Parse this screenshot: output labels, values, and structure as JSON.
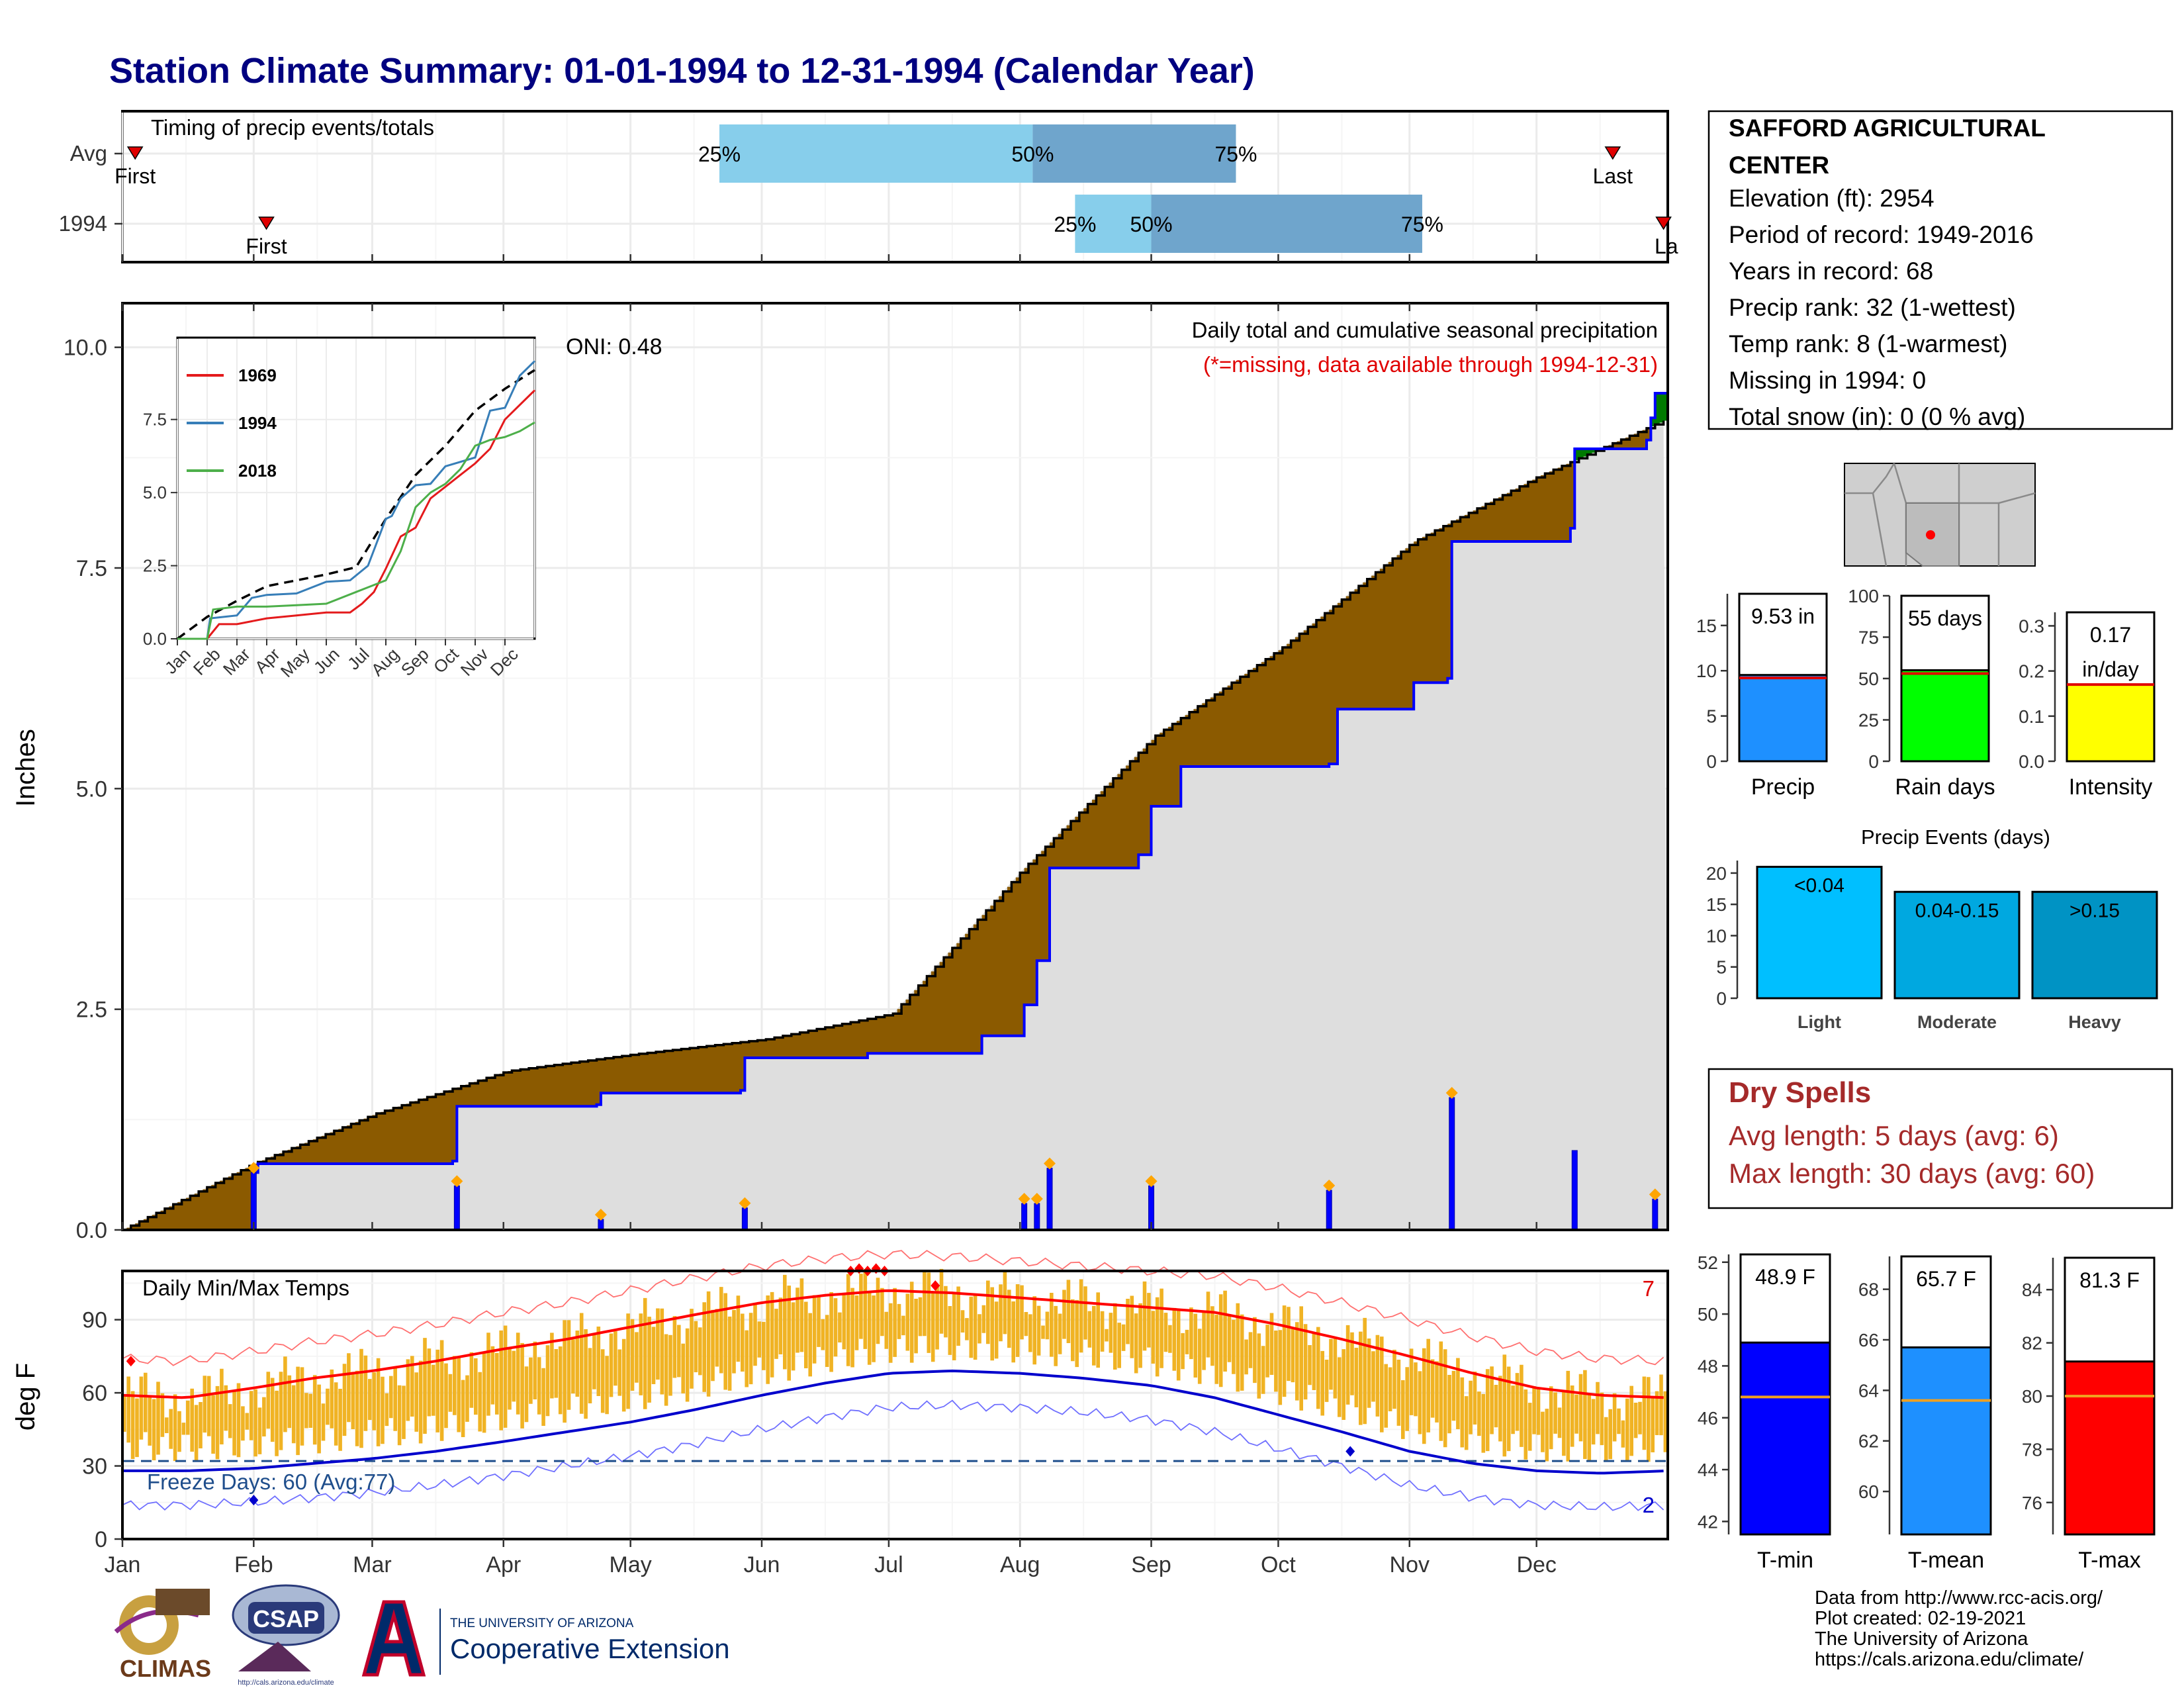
{
  "title": "Station Climate Summary: 01-01-1994 to 12-31-1994 (Calendar Year)",
  "colors": {
    "title": "#000080",
    "precip_obs": "#0000ff",
    "precip_avg_fill": "#dedede",
    "deficit": "#8b5a00",
    "surplus": "#007a00",
    "band_light": "#87ceeb",
    "band_dark": "#6fa5cc",
    "temp_band": "#f0b324",
    "tmax_avg": "#ff0000",
    "tmin_avg": "#0000cc",
    "dry_spells": "#a52a2a",
    "freeze": "#1f4e8c",
    "tmin_bar": "#0000ff",
    "tmean_bar": "#1e90ff",
    "tmax_bar": "#ff0000",
    "precip_bar": "#1e90ff",
    "raindays_bar": "#00ff00",
    "intensity_bar": "#ffff00",
    "events_light": "#00bfff",
    "events_moderate": "#00a8e0",
    "events_heavy": "#0093c4"
  },
  "chart_data": [
    {
      "type": "bar",
      "name": "timing",
      "title": "Timing of precip events/totals",
      "rows": [
        {
          "label": "Avg",
          "first": "Jan 4",
          "q25": "May 22",
          "q50": "Aug 4",
          "q75": "Sep 21",
          "last": "Dec 19",
          "first_label": "First",
          "last_label": "Last"
        },
        {
          "label": "1994",
          "first": "Feb 4",
          "q25": "Aug 14",
          "q50": "Sep 1",
          "q75": "Nov 4",
          "last": "Dec 31",
          "first_label": "First",
          "last_label": "La"
        }
      ],
      "percent_labels": [
        "25%",
        "50%",
        "75%"
      ]
    },
    {
      "type": "area",
      "name": "cumulative-precip",
      "ylabel": "Inches",
      "ylim": [
        0,
        10.5
      ],
      "yticks": [
        "0.0",
        "2.5",
        "5.0",
        "7.5",
        "10.0"
      ],
      "xticks": [
        "Jan",
        "Feb",
        "Mar",
        "Apr",
        "May",
        "Jun",
        "Jul",
        "Aug",
        "Sep",
        "Oct",
        "Nov",
        "Dec"
      ],
      "subtitle": "Daily total and cumulative seasonal precipitation",
      "missing_note": "(*=missing, data available through 1994-12-31)",
      "oni": "ONI: 0.48",
      "avg_cumulative": {
        "day": [
          0,
          31,
          60,
          91,
          121,
          152,
          182,
          213,
          244,
          274,
          305,
          335,
          365
        ],
        "in": [
          0,
          0.75,
          1.32,
          1.8,
          1.99,
          2.16,
          2.45,
          4.1,
          5.6,
          6.6,
          7.8,
          8.55,
          9.19
        ]
      },
      "obs_cumulative": [
        {
          "day": 30,
          "in": 0
        },
        {
          "day": 31,
          "in": 0.65
        },
        {
          "day": 32,
          "in": 0.75
        },
        {
          "day": 78,
          "in": 0.78
        },
        {
          "day": 79,
          "in": 1.4
        },
        {
          "day": 112,
          "in": 1.42
        },
        {
          "day": 113,
          "in": 1.55
        },
        {
          "day": 146,
          "in": 1.58
        },
        {
          "day": 147,
          "in": 1.95
        },
        {
          "day": 176,
          "in": 2.0
        },
        {
          "day": 203,
          "in": 2.2
        },
        {
          "day": 213,
          "in": 2.55
        },
        {
          "day": 216,
          "in": 3.05
        },
        {
          "day": 219,
          "in": 4.1
        },
        {
          "day": 240,
          "in": 4.25
        },
        {
          "day": 243,
          "in": 4.8
        },
        {
          "day": 250,
          "in": 5.25
        },
        {
          "day": 285,
          "in": 5.28
        },
        {
          "day": 287,
          "in": 5.9
        },
        {
          "day": 305,
          "in": 6.2
        },
        {
          "day": 313,
          "in": 6.25
        },
        {
          "day": 314,
          "in": 7.8
        },
        {
          "day": 342,
          "in": 7.95
        },
        {
          "day": 343,
          "in": 8.85
        },
        {
          "day": 360,
          "in": 8.95
        },
        {
          "day": 361,
          "in": 9.2
        },
        {
          "day": 362,
          "in": 9.48
        },
        {
          "day": 365,
          "in": 9.53
        }
      ],
      "daily_totals": [
        {
          "day": 31,
          "in": 0.65
        },
        {
          "day": 79,
          "in": 0.5
        },
        {
          "day": 113,
          "in": 0.12
        },
        {
          "day": 147,
          "in": 0.25
        },
        {
          "day": 213,
          "in": 0.3
        },
        {
          "day": 216,
          "in": 0.3
        },
        {
          "day": 219,
          "in": 0.7
        },
        {
          "day": 243,
          "in": 0.5
        },
        {
          "day": 285,
          "in": 0.45
        },
        {
          "day": 314,
          "in": 1.5
        },
        {
          "day": 343,
          "in": 0.9
        },
        {
          "day": 362,
          "in": 0.35
        }
      ]
    },
    {
      "type": "line",
      "name": "inset-cumulative-years",
      "series": [
        {
          "name": "1969",
          "color": "#e41a1c",
          "x": [
            0,
            1,
            1.4,
            2,
            2.5,
            3,
            4,
            5,
            5.8,
            6.2,
            6.6,
            7,
            7.5,
            8,
            8.5,
            9,
            9.5,
            10,
            10.5,
            11,
            11.5,
            12
          ],
          "y": [
            0,
            0,
            0.5,
            0.5,
            0.6,
            0.7,
            0.8,
            0.9,
            0.9,
            1.2,
            1.6,
            2.4,
            3.5,
            3.8,
            4.8,
            5.2,
            5.6,
            6.0,
            6.5,
            7.5,
            8.0,
            8.5
          ]
        },
        {
          "name": "1994",
          "color": "#377eb8",
          "x": [
            0,
            1,
            1.1,
            2,
            2.5,
            3,
            4,
            5,
            5.8,
            6.4,
            7,
            7.2,
            7.5,
            8,
            8.5,
            9,
            10,
            10.5,
            11,
            11.5,
            12
          ],
          "y": [
            0,
            0,
            0.7,
            0.8,
            1.4,
            1.5,
            1.55,
            1.95,
            2.0,
            2.5,
            4.1,
            4.2,
            4.8,
            5.25,
            5.3,
            5.9,
            6.2,
            7.8,
            7.9,
            9.0,
            9.5
          ]
        },
        {
          "name": "2018",
          "color": "#4daf4a",
          "x": [
            0,
            1,
            1.2,
            2,
            3,
            4,
            5,
            6,
            6.5,
            7,
            7.5,
            8,
            8.5,
            9,
            9.5,
            10,
            10.5,
            11,
            11.5,
            12
          ],
          "y": [
            0,
            0,
            1.0,
            1.1,
            1.1,
            1.15,
            1.2,
            1.6,
            1.8,
            2.0,
            3.0,
            4.5,
            5.0,
            5.3,
            5.8,
            6.6,
            6.8,
            6.9,
            7.1,
            7.4
          ]
        }
      ],
      "avg": {
        "x": [
          0,
          1,
          2,
          3,
          4,
          5,
          6,
          7,
          8,
          9,
          10,
          11,
          12
        ],
        "y": [
          0,
          0.75,
          1.3,
          1.8,
          2.0,
          2.2,
          2.45,
          4.1,
          5.6,
          6.6,
          7.8,
          8.55,
          9.19
        ]
      },
      "yticks": [
        "0.0",
        "2.5",
        "5.0",
        "7.5"
      ],
      "xticks": [
        "Jan",
        "Feb",
        "Mar",
        "Apr",
        "May",
        "Jun",
        "Jul",
        "Aug",
        "Sep",
        "Oct",
        "Nov",
        "Dec"
      ]
    },
    {
      "type": "line",
      "name": "daily-temps",
      "title": "Daily Min/Max Temps",
      "ylabel": "deg F",
      "ylim": [
        0,
        110
      ],
      "yticks": [
        "0",
        "30",
        "60",
        "90"
      ],
      "xticks": [
        "Jan",
        "Feb",
        "Mar",
        "Apr",
        "May",
        "Jun",
        "Jul",
        "Aug",
        "Sep",
        "Oct",
        "Nov",
        "Dec"
      ],
      "record_high_count": "7",
      "record_low_count": "2",
      "freeze_label": "Freeze Days: 60 (Avg:77)",
      "freeze_line": 32,
      "avg_tmax": {
        "day": [
          0,
          15,
          31,
          45,
          59,
          74,
          90,
          105,
          120,
          135,
          151,
          166,
          181,
          196,
          212,
          227,
          243,
          258,
          273,
          288,
          304,
          319,
          334,
          349,
          365
        ],
        "F": [
          59,
          58,
          62,
          66,
          69,
          73,
          78,
          82,
          87,
          92,
          97,
          100,
          102,
          101,
          99,
          97,
          95,
          93,
          88,
          82,
          75,
          68,
          62,
          59,
          58
        ]
      },
      "avg_tmin": {
        "day": [
          0,
          15,
          31,
          45,
          59,
          74,
          90,
          105,
          120,
          135,
          151,
          166,
          181,
          196,
          212,
          227,
          243,
          258,
          273,
          288,
          304,
          319,
          334,
          349,
          365
        ],
        "F": [
          28,
          28,
          29,
          31,
          33,
          36,
          40,
          44,
          48,
          53,
          59,
          64,
          68,
          69,
          68,
          66,
          63,
          58,
          51,
          44,
          36,
          31,
          28,
          27,
          28
        ]
      }
    },
    {
      "type": "bar",
      "name": "precip-summary",
      "categories": [
        "Precip",
        "Rain days",
        "Intensity"
      ],
      "values": [
        9.53,
        55,
        0.17
      ],
      "averages": [
        9.2,
        53,
        0.17
      ],
      "labels": [
        "9.53 in",
        "55 days",
        "0.17",
        "in/day"
      ],
      "yticks": [
        [
          "0",
          "5",
          "10",
          "15"
        ],
        [
          "0",
          "25",
          "50",
          "75",
          "100"
        ],
        [
          "0.0",
          "0.1",
          "0.2",
          "0.3"
        ]
      ]
    },
    {
      "type": "bar",
      "name": "precip-events",
      "title": "Precip Events (days)",
      "categories": [
        "Light",
        "Moderate",
        "Heavy"
      ],
      "bin_labels": [
        "<0.04",
        "0.04-0.15",
        ">0.15"
      ],
      "values": [
        21,
        17,
        17
      ],
      "yticks": [
        "0",
        "5",
        "10",
        "15",
        "20"
      ]
    },
    {
      "type": "bar",
      "name": "temp-summary",
      "categories": [
        "T-min",
        "T-mean",
        "T-max"
      ],
      "values": [
        48.9,
        65.7,
        81.3
      ],
      "averages": [
        46.8,
        63.6,
        80.0
      ],
      "labels": [
        "48.9 F",
        "65.7 F",
        "81.3 F"
      ],
      "yticks": [
        [
          "42",
          "44",
          "46",
          "48",
          "50",
          "52"
        ],
        [
          "60",
          "62",
          "64",
          "66",
          "68"
        ],
        [
          "76",
          "78",
          "80",
          "82",
          "84"
        ]
      ]
    }
  ],
  "station": {
    "name_line1": "SAFFORD AGRICULTURAL",
    "name_line2": "CENTER",
    "lines": [
      "Elevation (ft): 2954",
      "Period of record: 1949-2016",
      "Years in record: 68",
      "Precip rank: 32 (1-wettest)",
      "Temp rank: 8 (1-warmest)",
      "Missing in 1994: 0",
      "Total snow (in): 0 (0 % avg)"
    ]
  },
  "dry_spells": {
    "title": "Dry Spells",
    "avg": "Avg length: 5 days (avg: 6)",
    "max": "Max length: 30 days (avg: 60)"
  },
  "footer": {
    "credits": [
      "Data from http://www.rcc-acis.org/",
      "Plot created: 02-19-2021",
      "The University of Arizona",
      "https://cals.arizona.edu/climate/"
    ],
    "climas": "CLIMAS",
    "csap": "CSAP",
    "csap_url": "http://cals.arizona.edu/climate",
    "ua_line1": "THE UNIVERSITY OF ARIZONA",
    "ua_line2": "Cooperative Extension"
  }
}
